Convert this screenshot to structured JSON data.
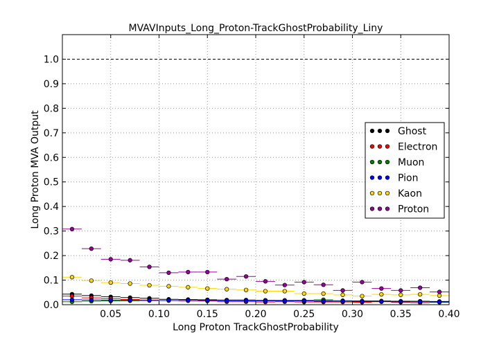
{
  "chart_data": {
    "type": "scatter",
    "title": "MVAVInputs_Long_Proton-TrackGhostProbability_Liny",
    "xlabel": "Long Proton TrackGhostProbability",
    "ylabel": "Long Proton MVA Output",
    "xlim": [
      0.0,
      0.4
    ],
    "ylim": [
      0.0,
      1.1
    ],
    "bin_width": 0.02,
    "x": [
      0.01,
      0.03,
      0.05,
      0.07,
      0.09,
      0.11,
      0.13,
      0.15,
      0.17,
      0.19,
      0.21,
      0.23,
      0.25,
      0.27,
      0.29,
      0.31,
      0.33,
      0.35,
      0.37,
      0.39
    ],
    "x_ticks": [
      0.05,
      0.1,
      0.15,
      0.2,
      0.25,
      0.3,
      0.35,
      0.4
    ],
    "x_tick_labels": [
      "0.05",
      "0.10",
      "0.15",
      "0.20",
      "0.25",
      "0.30",
      "0.35",
      "0.40"
    ],
    "y_ticks": [
      0.0,
      0.1,
      0.2,
      0.3,
      0.4,
      0.5,
      0.6,
      0.7,
      0.8,
      0.9,
      1.0
    ],
    "y_tick_labels": [
      "0.0",
      "0.1",
      "0.2",
      "0.3",
      "0.4",
      "0.5",
      "0.6",
      "0.7",
      "0.8",
      "0.9",
      "1.0"
    ],
    "reference_line": 1.0,
    "grid": true,
    "legend_position": "right",
    "series": [
      {
        "name": "Ghost",
        "color": "#000000",
        "values": [
          0.043,
          0.037,
          0.032,
          0.029,
          0.026,
          0.022,
          0.021,
          0.02,
          0.019,
          0.019,
          0.018,
          0.017,
          0.017,
          0.016,
          0.016,
          0.015,
          0.015,
          0.014,
          0.014,
          0.013
        ]
      },
      {
        "name": "Electron",
        "color": "#ff0000",
        "values": [
          0.035,
          0.028,
          0.024,
          0.021,
          0.019,
          0.017,
          0.016,
          0.015,
          0.012,
          0.012,
          0.011,
          0.012,
          0.011,
          0.011,
          0.011,
          0.01,
          0.012,
          0.01,
          0.008,
          0.01
        ]
      },
      {
        "name": "Muon",
        "color": "#008000",
        "values": [
          0.012,
          0.014,
          0.015,
          0.016,
          0.017,
          0.017,
          0.017,
          0.017,
          0.018,
          0.018,
          0.018,
          0.018,
          0.018,
          0.02,
          0.016,
          0.013,
          0.013,
          0.012,
          0.013,
          0.01
        ]
      },
      {
        "name": "Pion",
        "color": "#0000ff",
        "values": [
          0.02,
          0.019,
          0.018,
          0.018,
          0.017,
          0.017,
          0.017,
          0.017,
          0.016,
          0.016,
          0.015,
          0.015,
          0.015,
          0.014,
          0.014,
          0.013,
          0.013,
          0.012,
          0.012,
          0.011
        ]
      },
      {
        "name": "Kaon",
        "color": "#ffd700",
        "values": [
          0.112,
          0.098,
          0.09,
          0.086,
          0.079,
          0.075,
          0.071,
          0.066,
          0.063,
          0.06,
          0.055,
          0.055,
          0.045,
          0.045,
          0.04,
          0.035,
          0.042,
          0.04,
          0.042,
          0.037
        ]
      },
      {
        "name": "Proton",
        "color": "#990099",
        "values": [
          0.308,
          0.228,
          0.185,
          0.181,
          0.154,
          0.13,
          0.133,
          0.133,
          0.104,
          0.115,
          0.095,
          0.08,
          0.092,
          0.081,
          0.058,
          0.092,
          0.066,
          0.058,
          0.069,
          0.052
        ]
      }
    ]
  }
}
